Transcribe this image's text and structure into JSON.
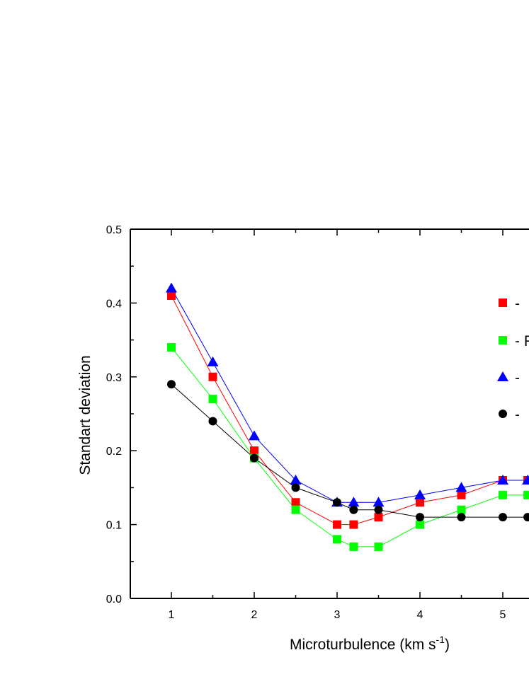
{
  "chart_data": {
    "type": "line",
    "title": "",
    "xlabel": "Microturbulence (km s",
    "xlabel_sup": "-1",
    "xlabel_end": ")",
    "ylabel": "Standart deviation",
    "xlim": [
      0.5,
      5.3
    ],
    "ylim": [
      0.0,
      0.5
    ],
    "x_ticks": [
      1,
      2,
      3,
      4,
      5
    ],
    "x_tick_labels": [
      "1",
      "2",
      "3",
      "4",
      "5"
    ],
    "y_ticks": [
      0.0,
      0.1,
      0.2,
      0.3,
      0.4,
      0.5
    ],
    "y_tick_labels": [
      "0.0",
      "0.1",
      "0.2",
      "0.3",
      "0.4",
      "0.5"
    ],
    "grid": false,
    "legend_position": "right",
    "series": [
      {
        "legend_label": "-",
        "color": "#ff0000",
        "marker": "square",
        "x": [
          1,
          1.5,
          2,
          2.5,
          3,
          3.2,
          3.5,
          4,
          4.5,
          5,
          5.3
        ],
        "y": [
          0.41,
          0.3,
          0.2,
          0.13,
          0.1,
          0.1,
          0.11,
          0.13,
          0.14,
          0.16,
          0.16
        ]
      },
      {
        "legend_label": "- F",
        "color": "#00ff00",
        "marker": "square",
        "x": [
          1,
          1.5,
          2,
          2.5,
          3,
          3.2,
          3.5,
          4,
          4.5,
          5,
          5.3
        ],
        "y": [
          0.34,
          0.27,
          0.19,
          0.12,
          0.08,
          0.07,
          0.07,
          0.1,
          0.12,
          0.14,
          0.14
        ]
      },
      {
        "legend_label": "-",
        "color": "#0000ff",
        "marker": "triangle",
        "x": [
          1,
          1.5,
          2,
          2.5,
          3,
          3.2,
          3.5,
          4,
          4.5,
          5,
          5.3
        ],
        "y": [
          0.42,
          0.32,
          0.22,
          0.16,
          0.13,
          0.13,
          0.13,
          0.14,
          0.15,
          0.16,
          0.16
        ]
      },
      {
        "legend_label": "-",
        "color": "#000000",
        "marker": "circle",
        "x": [
          1,
          1.5,
          2,
          2.5,
          3,
          3.2,
          3.5,
          4,
          4.5,
          5,
          5.3
        ],
        "y": [
          0.29,
          0.24,
          0.19,
          0.15,
          0.13,
          0.12,
          0.12,
          0.11,
          0.11,
          0.11,
          0.11
        ]
      }
    ]
  }
}
